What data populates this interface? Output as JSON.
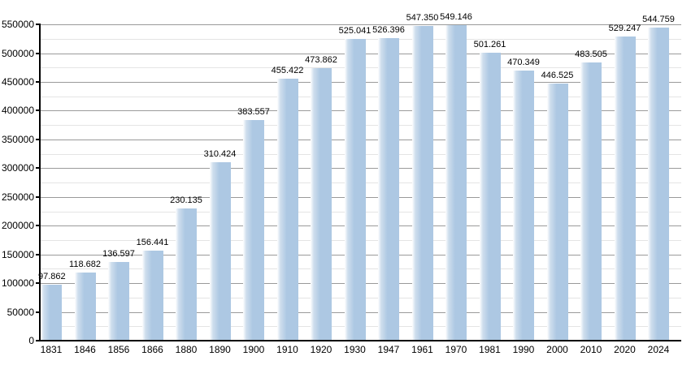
{
  "chart_data": {
    "type": "bar",
    "categories": [
      "1831",
      "1846",
      "1856",
      "1866",
      "1880",
      "1890",
      "1900",
      "1910",
      "1920",
      "1930",
      "1947",
      "1961",
      "1970",
      "1981",
      "1990",
      "2000",
      "2010",
      "2020",
      "2024"
    ],
    "values": [
      97862,
      118682,
      136597,
      156441,
      230135,
      310424,
      383557,
      455422,
      473862,
      525041,
      526396,
      547350,
      549146,
      501261,
      470349,
      446525,
      483505,
      529247,
      544759
    ],
    "value_labels": [
      "97.862",
      "118.682",
      "136.597",
      "156.441",
      "230.135",
      "310.424",
      "383.557",
      "455.422",
      "473.862",
      "525.041",
      "526.396",
      "547.350",
      "549.146",
      "501.261",
      "470.349",
      "446.525",
      "483.505",
      "529.247",
      "544.759"
    ],
    "xlabel": "",
    "ylabel": "",
    "ylim": [
      0,
      550000
    ],
    "y_major_step": 50000,
    "y_minor_step": 25000,
    "y_tick_labels": [
      "0",
      "50000",
      "100000",
      "150000",
      "200000",
      "250000",
      "300000",
      "350000",
      "400000",
      "450000",
      "500000",
      "550000"
    ],
    "grid": "horizontal major+minor",
    "legend": "none",
    "colors": {
      "bar": "#adc8e3",
      "bar_highlight": "#ffffff",
      "bar_mid": "#cfdeed",
      "grid_major": "#9a9a9a",
      "grid_minor": "#e4e4e4",
      "axis": "#000000",
      "label_text": "#000000",
      "background": "#ffffff"
    }
  }
}
